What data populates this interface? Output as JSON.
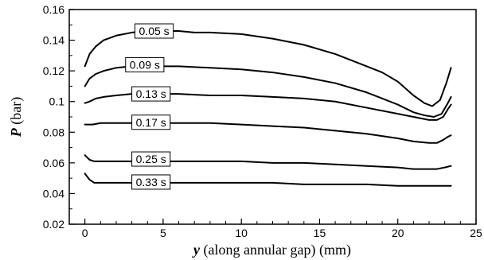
{
  "chart_data": {
    "type": "line",
    "title": "",
    "xlabel_var": "y",
    "xlabel_rest": " (along annular gap) (mm)",
    "ylabel_var": "P",
    "ylabel_rest": " (bar)",
    "xlim": [
      -1,
      25
    ],
    "ylim": [
      0.02,
      0.16
    ],
    "x_ticks": [
      0,
      5,
      10,
      15,
      20,
      25
    ],
    "x_tick_labels": [
      "0",
      "5",
      "10",
      "15",
      "20",
      "25"
    ],
    "y_ticks": [
      0.02,
      0.04,
      0.06,
      0.08,
      0.1,
      0.12,
      0.14,
      0.16
    ],
    "y_tick_labels": [
      "0.02",
      "0.04",
      "0.06",
      "0.08",
      "0.1",
      "0.12",
      "0.14",
      "0.16"
    ],
    "grid": false,
    "series": [
      {
        "name": "0.05 s",
        "label_at": [
          3.2,
          0.146
        ],
        "x": [
          0,
          0.3,
          0.7,
          1.2,
          2,
          3,
          4,
          5,
          6,
          7,
          8,
          10,
          12,
          14,
          16,
          18,
          19,
          20,
          21,
          21.7,
          22.2,
          22.7,
          23.1,
          23.4
        ],
        "y": [
          0.123,
          0.131,
          0.136,
          0.14,
          0.143,
          0.145,
          0.146,
          0.146,
          0.146,
          0.145,
          0.145,
          0.144,
          0.141,
          0.137,
          0.131,
          0.123,
          0.119,
          0.113,
          0.104,
          0.099,
          0.097,
          0.101,
          0.112,
          0.122
        ]
      },
      {
        "name": "0.09 s",
        "label_at": [
          2.6,
          0.124
        ],
        "x": [
          0,
          0.3,
          0.7,
          1.2,
          2,
          3,
          4,
          5,
          6,
          8,
          10,
          12,
          14,
          16,
          18,
          19,
          20,
          21,
          21.7,
          22.3,
          22.8,
          23.2,
          23.4
        ],
        "y": [
          0.11,
          0.115,
          0.118,
          0.12,
          0.122,
          0.123,
          0.123,
          0.123,
          0.123,
          0.122,
          0.121,
          0.119,
          0.116,
          0.112,
          0.106,
          0.102,
          0.098,
          0.093,
          0.091,
          0.09,
          0.092,
          0.099,
          0.103
        ]
      },
      {
        "name": "0.13 s",
        "label_at": [
          3.0,
          0.105
        ],
        "x": [
          0,
          0.3,
          0.7,
          1.2,
          2,
          3,
          4,
          6,
          8,
          10,
          12,
          14,
          16,
          18,
          20,
          21,
          22,
          22.5,
          22.9,
          23.2,
          23.4
        ],
        "y": [
          0.099,
          0.1,
          0.102,
          0.103,
          0.104,
          0.105,
          0.105,
          0.105,
          0.104,
          0.104,
          0.103,
          0.102,
          0.1,
          0.096,
          0.092,
          0.09,
          0.088,
          0.088,
          0.09,
          0.095,
          0.098
        ]
      },
      {
        "name": "0.17 s",
        "label_at": [
          3.0,
          0.0865
        ],
        "x": [
          0,
          0.5,
          1,
          2,
          3,
          4,
          6,
          8,
          10,
          12,
          14,
          16,
          18,
          20,
          21,
          22,
          22.5,
          22.9,
          23.2,
          23.4
        ],
        "y": [
          0.085,
          0.085,
          0.086,
          0.086,
          0.086,
          0.086,
          0.086,
          0.086,
          0.085,
          0.084,
          0.083,
          0.081,
          0.079,
          0.076,
          0.074,
          0.073,
          0.073,
          0.075,
          0.077,
          0.078
        ]
      },
      {
        "name": "0.25 s",
        "label_at": [
          3.0,
          0.0625
        ],
        "x": [
          0,
          0.3,
          0.6,
          1,
          2,
          4,
          6,
          8,
          10,
          12,
          14,
          16,
          18,
          20,
          21,
          22,
          22.5,
          23,
          23.4
        ],
        "y": [
          0.065,
          0.062,
          0.061,
          0.061,
          0.061,
          0.061,
          0.061,
          0.061,
          0.061,
          0.06,
          0.06,
          0.059,
          0.058,
          0.057,
          0.056,
          0.056,
          0.056,
          0.057,
          0.058
        ]
      },
      {
        "name": "0.33 s",
        "label_at": [
          3.0,
          0.0475
        ],
        "x": [
          0,
          0.3,
          0.6,
          1,
          2,
          4,
          6,
          8,
          10,
          12,
          14,
          16,
          18,
          20,
          22,
          23,
          23.4
        ],
        "y": [
          0.053,
          0.049,
          0.047,
          0.047,
          0.047,
          0.047,
          0.047,
          0.047,
          0.047,
          0.047,
          0.046,
          0.046,
          0.046,
          0.045,
          0.045,
          0.045,
          0.045
        ]
      }
    ]
  }
}
